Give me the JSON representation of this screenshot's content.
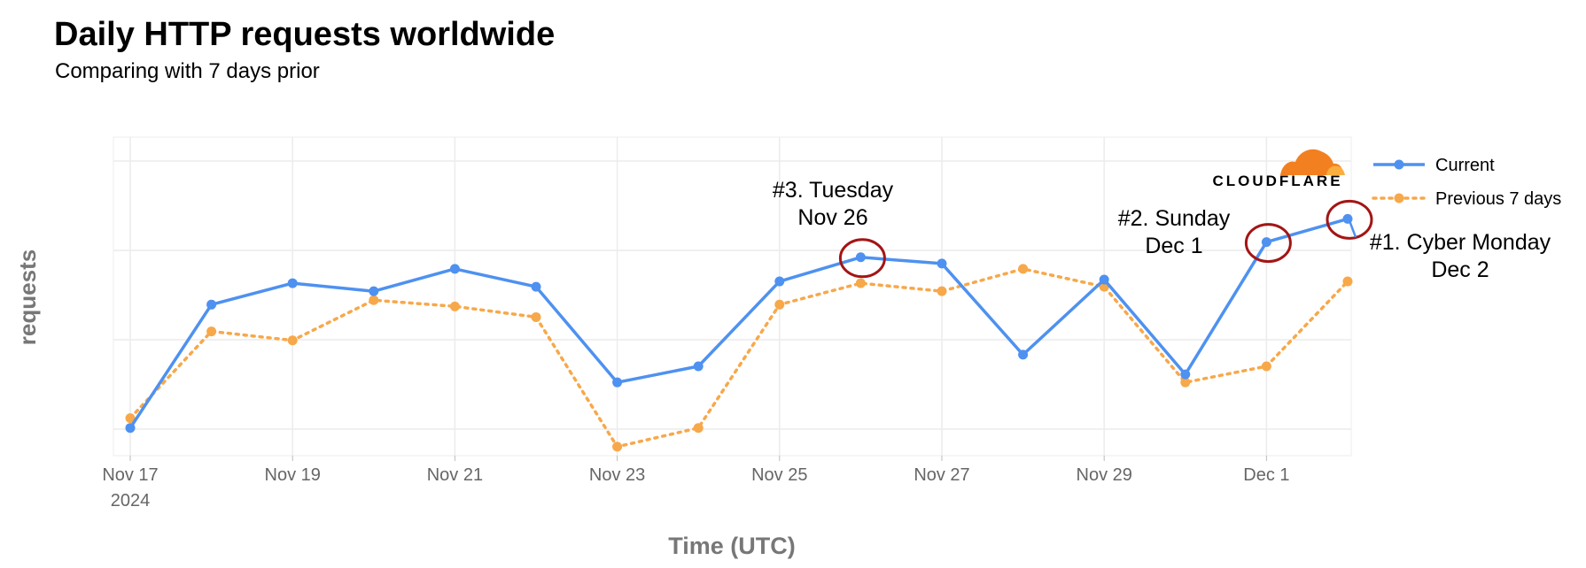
{
  "header": {
    "title": "Daily HTTP requests worldwide",
    "subtitle": "Comparing with 7 days prior"
  },
  "logo": {
    "text": "CLOUDFLARE",
    "icon": "cloud-icon",
    "color": "#f38020"
  },
  "chart_data": {
    "type": "line",
    "title": "Daily HTTP requests worldwide",
    "subtitle": "Comparing with 7 days prior",
    "xlabel": "Time (UTC)",
    "ylabel": "requests",
    "x_tick_labels": [
      "Nov 17",
      "Nov 19",
      "Nov 21",
      "Nov 23",
      "Nov 25",
      "Nov 27",
      "Nov 29",
      "Dec 1"
    ],
    "x_tick_sublabel": "2024",
    "x": [
      "Nov 17",
      "Nov 18",
      "Nov 19",
      "Nov 20",
      "Nov 21",
      "Nov 22",
      "Nov 23",
      "Nov 24",
      "Nov 25",
      "Nov 26",
      "Nov 27",
      "Nov 28",
      "Nov 29",
      "Nov 30",
      "Dec 1",
      "Dec 2"
    ],
    "y_scale": "relative (no y tick labels shown)",
    "grid": true,
    "legend_position": "right",
    "series": [
      {
        "name": "Current",
        "color": "#4e91f0",
        "style": "solid",
        "values": [
          0.31,
          1.69,
          1.93,
          1.84,
          2.09,
          1.89,
          0.82,
          1.0,
          1.95,
          2.22,
          2.15,
          1.13,
          1.97,
          0.91,
          2.39,
          2.65
        ]
      },
      {
        "name": "Previous 7 days",
        "color": "#f7a84a",
        "style": "dotted",
        "values": [
          0.42,
          1.39,
          1.29,
          1.74,
          1.67,
          1.55,
          0.1,
          0.31,
          1.69,
          1.93,
          1.84,
          2.09,
          1.89,
          0.82,
          1.0,
          1.95
        ]
      }
    ],
    "annotations": [
      {
        "x": "Nov 26",
        "series": "Current",
        "lines": [
          "#3. Tuesday",
          "Nov 26"
        ]
      },
      {
        "x": "Dec 1",
        "series": "Current",
        "lines": [
          "#2. Sunday",
          "Dec 1"
        ]
      },
      {
        "x": "Dec 2",
        "series": "Current",
        "lines": [
          "#1. Cyber Monday",
          "Dec 2"
        ]
      }
    ],
    "highlight_color": "#a31515"
  }
}
